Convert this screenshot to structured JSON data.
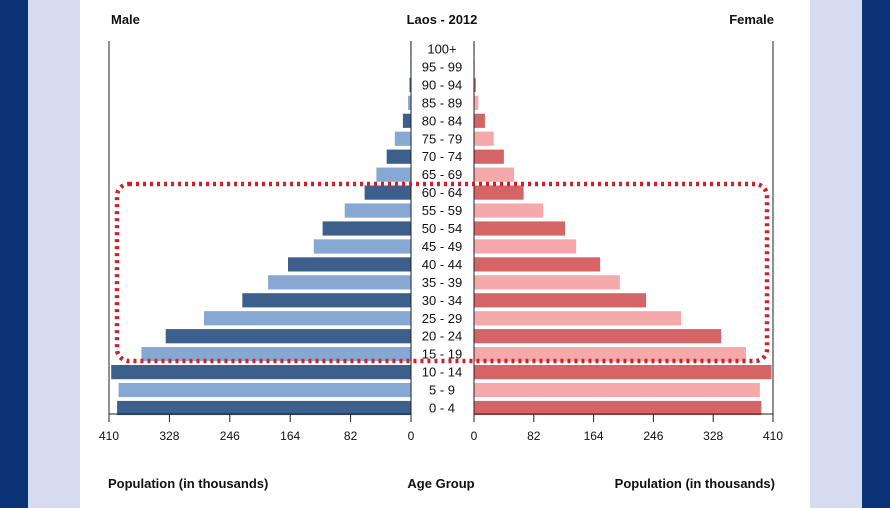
{
  "chart_data": {
    "type": "bar",
    "orientation": "horizontal-pyramid",
    "title": "Laos - 2012",
    "left_header": "Male",
    "right_header": "Female",
    "xlabel_left": "Population (in thousands)",
    "xlabel_center": "Age Group",
    "xlabel_right": "Population (in thousands)",
    "xlim": [
      0,
      410
    ],
    "male_ticks": [
      "410",
      "328",
      "246",
      "164",
      "82",
      "0"
    ],
    "female_ticks": [
      "0",
      "82",
      "164",
      "246",
      "328",
      "410"
    ],
    "tick_values": [
      0,
      82,
      164,
      246,
      328,
      410
    ],
    "categories": [
      "100+",
      "95 - 99",
      "90 - 94",
      "85 - 89",
      "80 - 84",
      "75 - 79",
      "70 - 74",
      "65 - 69",
      "60 - 64",
      "55 - 59",
      "50 - 54",
      "45 - 49",
      "40 - 44",
      "35 - 39",
      "30 - 34",
      "25 - 29",
      "20 - 24",
      "15 - 19",
      "10 - 14",
      "5 - 9",
      "0 - 4"
    ],
    "series": [
      {
        "name": "Male",
        "values": [
          0.5,
          1,
          2,
          4,
          11,
          22,
          33,
          47,
          63,
          90,
          120,
          132,
          167,
          194,
          229,
          281,
          333,
          366,
          407,
          397,
          399
        ]
      },
      {
        "name": "Female",
        "values": [
          0.5,
          1,
          2.5,
          6,
          15,
          27,
          41,
          55,
          68,
          95,
          125,
          140,
          173,
          200,
          236,
          284,
          339,
          373,
          408,
          392,
          394
        ]
      }
    ],
    "highlighted_groups": [
      "60 - 64",
      "55 - 59",
      "50 - 54",
      "45 - 49",
      "40 - 44",
      "35 - 39",
      "30 - 34",
      "25 - 29",
      "20 - 24",
      "15 - 19"
    ],
    "colors": {
      "male_dark": "#3d5f8c",
      "male_light": "#87a8d2",
      "female_dark": "#d56467",
      "female_light": "#f5a9aa",
      "highlight": "#d0202a",
      "frame_outer": "#0b3275",
      "frame_inner": "#d6dcef"
    }
  }
}
